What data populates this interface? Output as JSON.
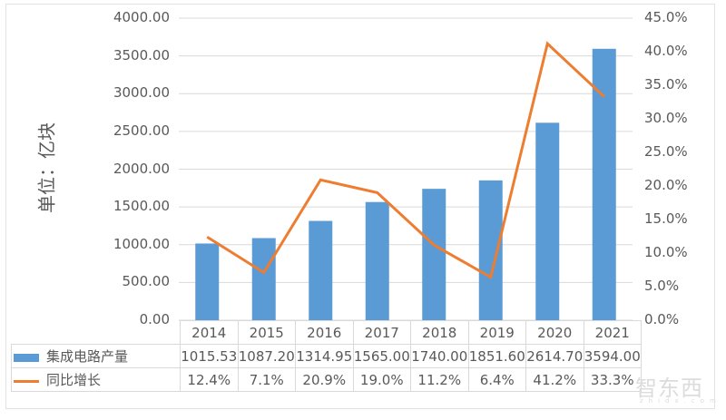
{
  "chart_data": {
    "type": "bar+line",
    "title": "",
    "categories": [
      "2014",
      "2015",
      "2016",
      "2017",
      "2018",
      "2019",
      "2020",
      "2021"
    ],
    "series": [
      {
        "name": "集成电路产量",
        "type": "bar",
        "axis": "left",
        "color": "#5b9bd5",
        "values": [
          1015.53,
          1087.2,
          1314.95,
          1565.0,
          1740.0,
          1851.6,
          2614.7,
          3594.0
        ],
        "labels": [
          "1015.53",
          "1087.20",
          "1314.95",
          "1565.00",
          "1740.00",
          "1851.60",
          "2614.70",
          "3594.00"
        ]
      },
      {
        "name": "同比增长",
        "type": "line",
        "axis": "right",
        "color": "#ed7d31",
        "values": [
          12.4,
          7.1,
          20.9,
          19.0,
          11.2,
          6.4,
          41.2,
          33.3
        ],
        "labels": [
          "12.4%",
          "7.1%",
          "20.9%",
          "19.0%",
          "11.2%",
          "6.4%",
          "41.2%",
          "33.3%"
        ]
      }
    ],
    "ylabel": "单位：亿块",
    "ylim": [
      0,
      4000
    ],
    "y2lim": [
      0,
      45
    ],
    "yticks": [
      "4000.00",
      "3500.00",
      "3000.00",
      "2500.00",
      "2000.00",
      "1500.00",
      "1000.00",
      "500.00",
      "0.00"
    ],
    "y2ticks": [
      "45.0%",
      "40.0%",
      "35.0%",
      "30.0%",
      "25.0%",
      "20.0%",
      "15.0%",
      "10.0%",
      "5.0%",
      "0.0%"
    ],
    "grid": true,
    "legend_position": "data-table"
  },
  "watermark": {
    "main": "智东西",
    "sub": "zhidx.com"
  }
}
